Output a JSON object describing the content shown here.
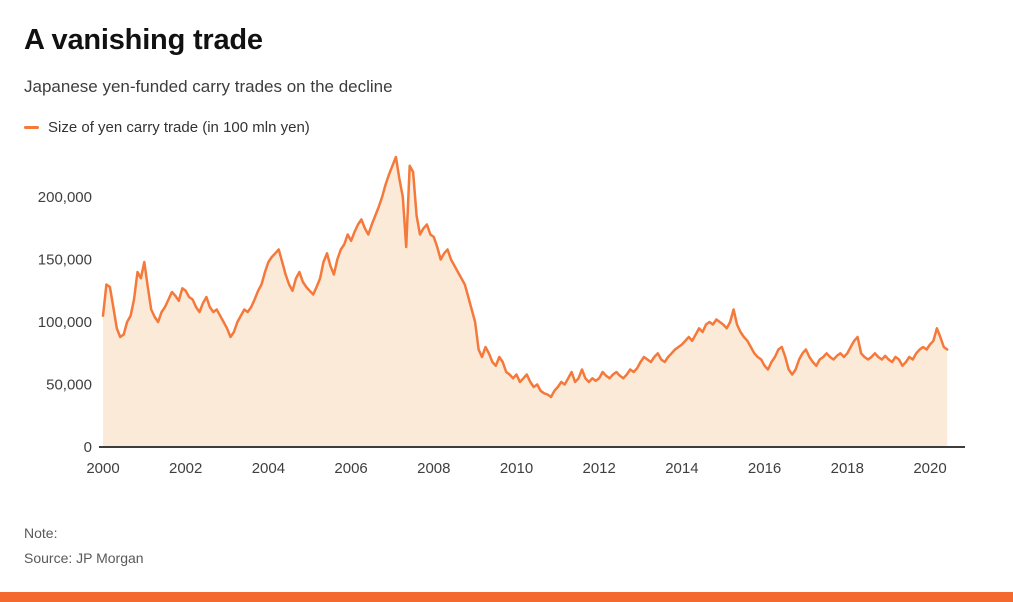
{
  "page": {
    "title": "A vanishing trade",
    "subtitle": "Japanese yen-funded carry trades on the decline",
    "note_label": "Note:",
    "source": "Source: JP Morgan"
  },
  "legend": {
    "label": "Size of yen carry trade (in 100 mln yen)"
  },
  "colors": {
    "accent": "#f4793b",
    "area_fill": "#fcead9",
    "axis": "#3d3d3d",
    "bottom_bar": "#f3692e"
  },
  "chart_data": {
    "type": "area",
    "title": "A vanishing trade",
    "subtitle": "Japanese yen-funded carry trades on the decline",
    "series_name": "Size of yen carry trade (in 100 mln yen)",
    "source": "JP Morgan",
    "grid": false,
    "legend_position": "top-left",
    "xlabel": "",
    "ylabel": "",
    "xlim": [
      2000,
      2020.9
    ],
    "ylim": [
      0,
      240000
    ],
    "x_start_year": 2000,
    "x_step_years": 0.0833333,
    "x_ticks": [
      2000,
      2002,
      2004,
      2006,
      2008,
      2010,
      2012,
      2014,
      2016,
      2018,
      2020
    ],
    "x_tick_labels": [
      "2000",
      "2002",
      "2004",
      "2006",
      "2008",
      "2010",
      "2012",
      "2014",
      "2016",
      "2018",
      "2020"
    ],
    "y_ticks": [
      0,
      50000,
      100000,
      150000,
      200000
    ],
    "y_tick_labels": [
      "0",
      "50,000",
      "100,000",
      "150,000",
      "200,000"
    ],
    "values": [
      105000,
      130000,
      128000,
      112000,
      95000,
      88000,
      90000,
      100000,
      105000,
      118000,
      140000,
      135000,
      148000,
      128000,
      110000,
      104000,
      100000,
      108000,
      112000,
      118000,
      124000,
      121000,
      117000,
      127000,
      125000,
      120000,
      118000,
      112000,
      108000,
      115000,
      120000,
      112000,
      108000,
      110000,
      105000,
      100000,
      95000,
      88000,
      92000,
      100000,
      105000,
      110000,
      108000,
      112000,
      118000,
      125000,
      130000,
      140000,
      148000,
      152000,
      155000,
      158000,
      148000,
      138000,
      130000,
      125000,
      135000,
      140000,
      132000,
      128000,
      125000,
      122000,
      128000,
      135000,
      148000,
      155000,
      145000,
      138000,
      150000,
      158000,
      162000,
      170000,
      165000,
      172000,
      178000,
      182000,
      175000,
      170000,
      178000,
      185000,
      192000,
      200000,
      210000,
      218000,
      225000,
      232000,
      215000,
      200000,
      160000,
      225000,
      220000,
      185000,
      170000,
      175000,
      178000,
      170000,
      168000,
      160000,
      150000,
      155000,
      158000,
      150000,
      145000,
      140000,
      135000,
      130000,
      120000,
      110000,
      100000,
      78000,
      72000,
      80000,
      75000,
      68000,
      65000,
      72000,
      68000,
      60000,
      58000,
      55000,
      58000,
      52000,
      55000,
      58000,
      52000,
      48000,
      50000,
      45000,
      43000,
      42000,
      40000,
      45000,
      48000,
      52000,
      50000,
      55000,
      60000,
      52000,
      55000,
      62000,
      55000,
      52000,
      55000,
      53000,
      55000,
      60000,
      57000,
      55000,
      58000,
      60000,
      57000,
      55000,
      58000,
      62000,
      60000,
      63000,
      68000,
      72000,
      70000,
      68000,
      72000,
      75000,
      70000,
      68000,
      72000,
      75000,
      78000,
      80000,
      82000,
      85000,
      88000,
      85000,
      90000,
      95000,
      92000,
      98000,
      100000,
      98000,
      102000,
      100000,
      98000,
      95000,
      100000,
      110000,
      98000,
      92000,
      88000,
      85000,
      80000,
      75000,
      72000,
      70000,
      65000,
      62000,
      68000,
      72000,
      78000,
      80000,
      72000,
      62000,
      58000,
      62000,
      70000,
      75000,
      78000,
      72000,
      68000,
      65000,
      70000,
      72000,
      75000,
      72000,
      70000,
      73000,
      75000,
      72000,
      75000,
      80000,
      85000,
      88000,
      75000,
      72000,
      70000,
      72000,
      75000,
      72000,
      70000,
      73000,
      70000,
      68000,
      72000,
      70000,
      65000,
      68000,
      72000,
      70000,
      75000,
      78000,
      80000,
      78000,
      82000,
      85000,
      95000,
      88000,
      80000,
      78000
    ]
  }
}
